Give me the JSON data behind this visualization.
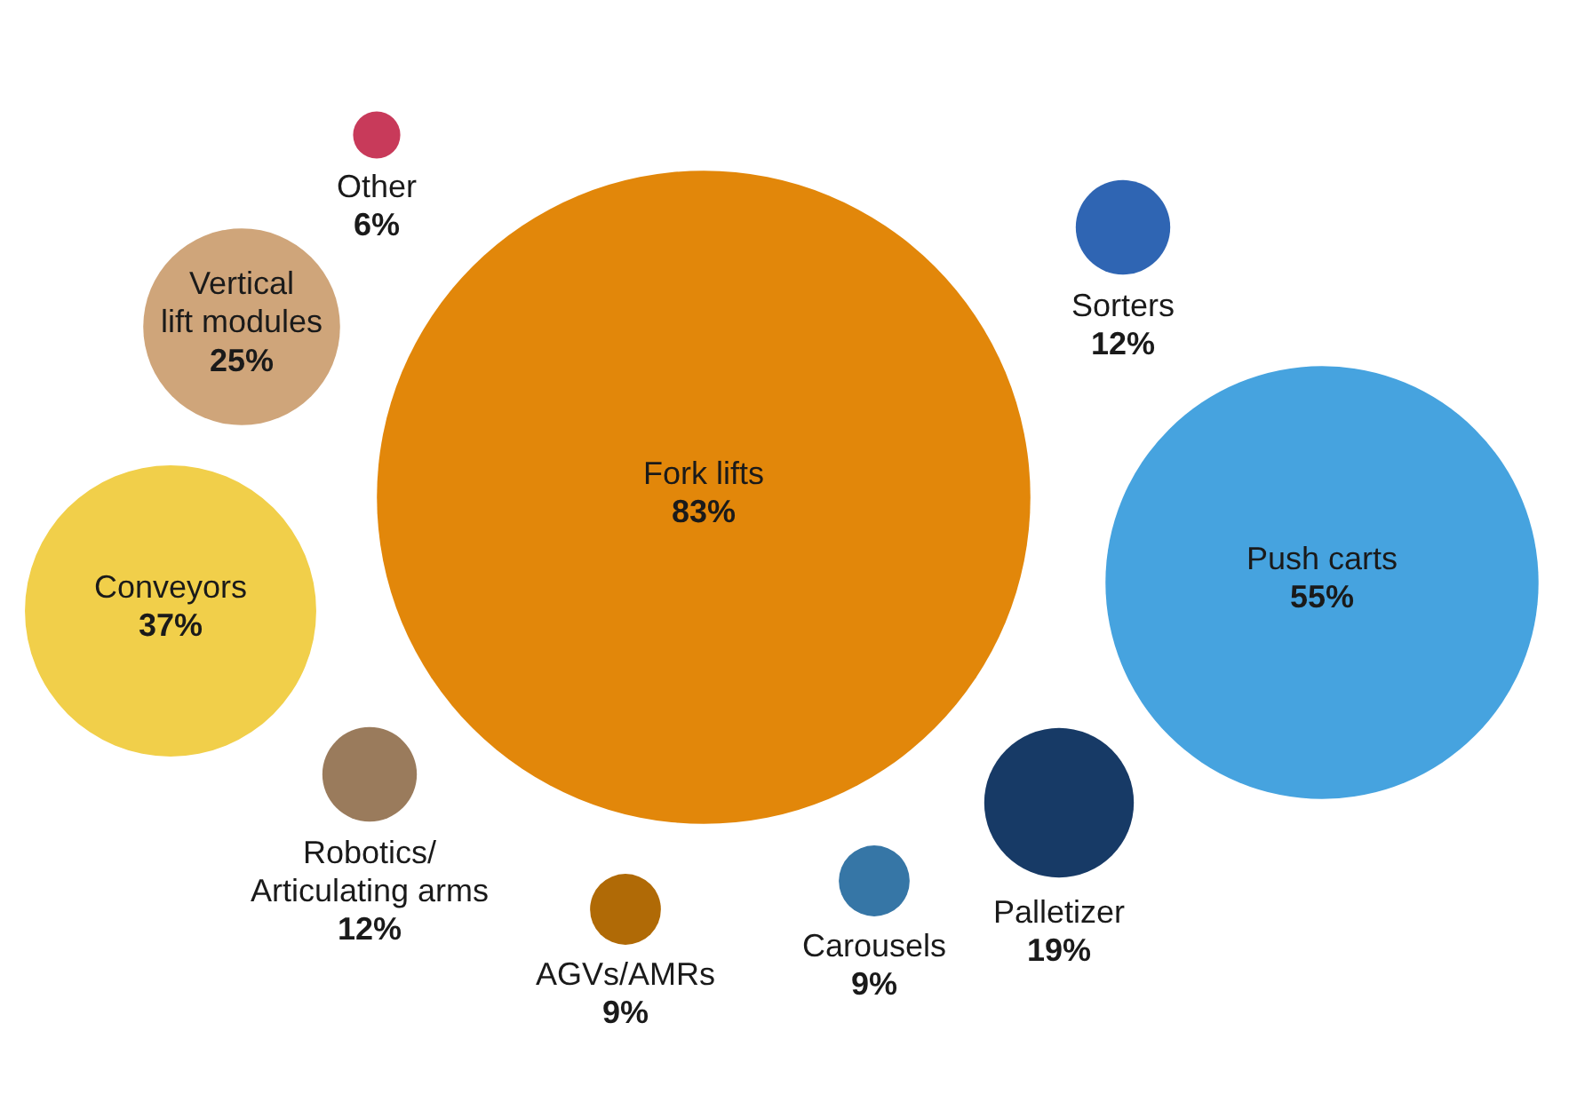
{
  "chart_data": {
    "type": "other",
    "categories": [
      "Fork lifts",
      "Push carts",
      "Palletizer",
      "Conveyors",
      "Vertical\nlift modules",
      "Robotics/\nArticulating arms",
      "Sorters",
      "Carousels",
      "AGVs/AMRs",
      "Other"
    ],
    "values": [
      83,
      55,
      19,
      37,
      25,
      12,
      12,
      9,
      9,
      6
    ],
    "value_labels": [
      "83%",
      "55%",
      "19%",
      "37%",
      "25%",
      "12%",
      "12%",
      "9%",
      "9%",
      "6%"
    ],
    "colors": [
      "#e2870a",
      "#46a3df",
      "#173a66",
      "#f1cf4a",
      "#cfa57a",
      "#9a7b5c",
      "#2f65b3",
      "#3676a6",
      "#b06a06",
      "#c83a5a"
    ]
  }
}
